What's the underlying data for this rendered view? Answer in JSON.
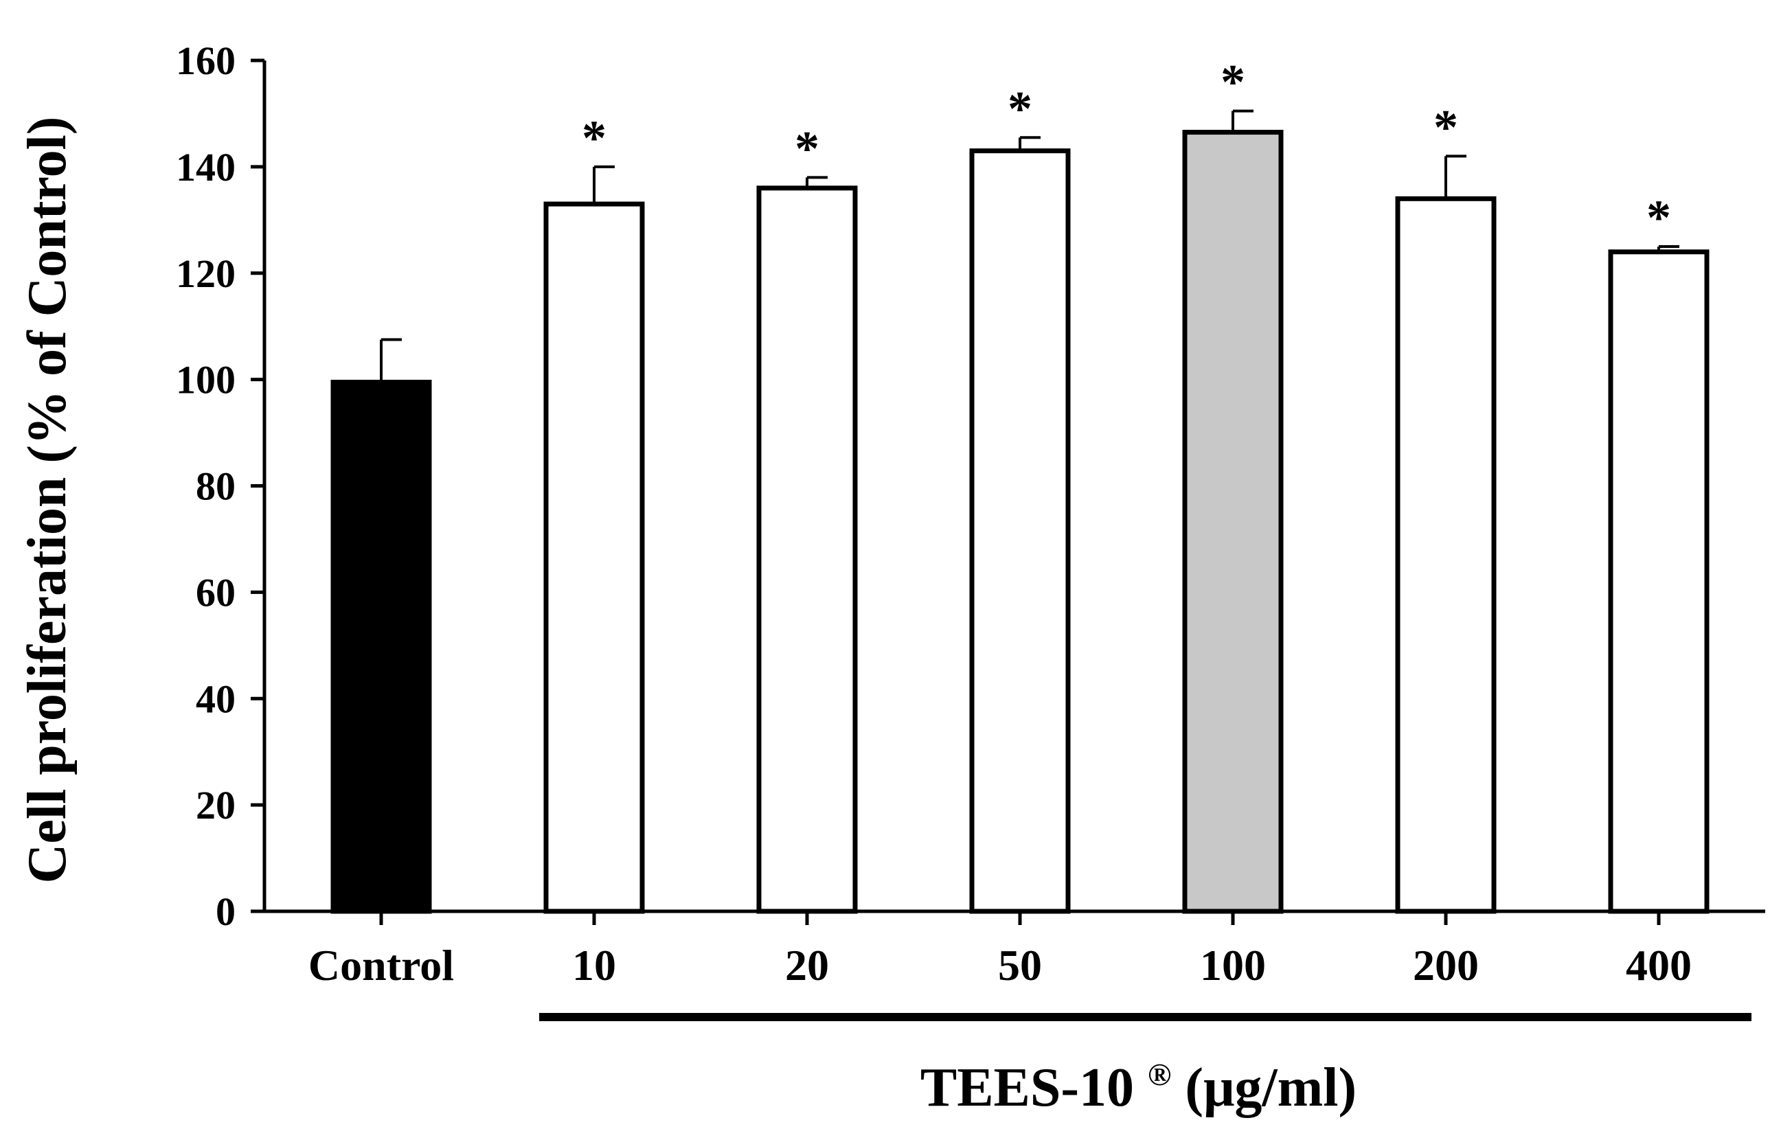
{
  "chart_data": {
    "type": "bar",
    "categories": [
      "Control",
      "10",
      "20",
      "50",
      "100",
      "200",
      "400"
    ],
    "values": [
      99.5,
      133,
      136,
      143,
      146.5,
      134,
      124
    ],
    "errors": [
      8,
      7,
      2,
      2.5,
      4,
      8,
      1
    ],
    "significance": [
      "",
      "*",
      "*",
      "*",
      "*",
      "*",
      "*"
    ],
    "bar_fills": [
      "#000000",
      "#ffffff",
      "#ffffff",
      "#ffffff",
      "#c8c8c8",
      "#ffffff",
      "#ffffff"
    ],
    "ylabel": "Cell proliferation  (% of Control)",
    "xlabel": "TEES-10",
    "xlabel_superscript": "®",
    "xlabel_unit": "(μg/ml)",
    "ylim": [
      0,
      160
    ],
    "yticks": [
      0,
      20,
      40,
      60,
      80,
      100,
      120,
      140,
      160
    ],
    "grid": false,
    "treatment_group": [
      "10",
      "20",
      "50",
      "100",
      "200",
      "400"
    ]
  }
}
